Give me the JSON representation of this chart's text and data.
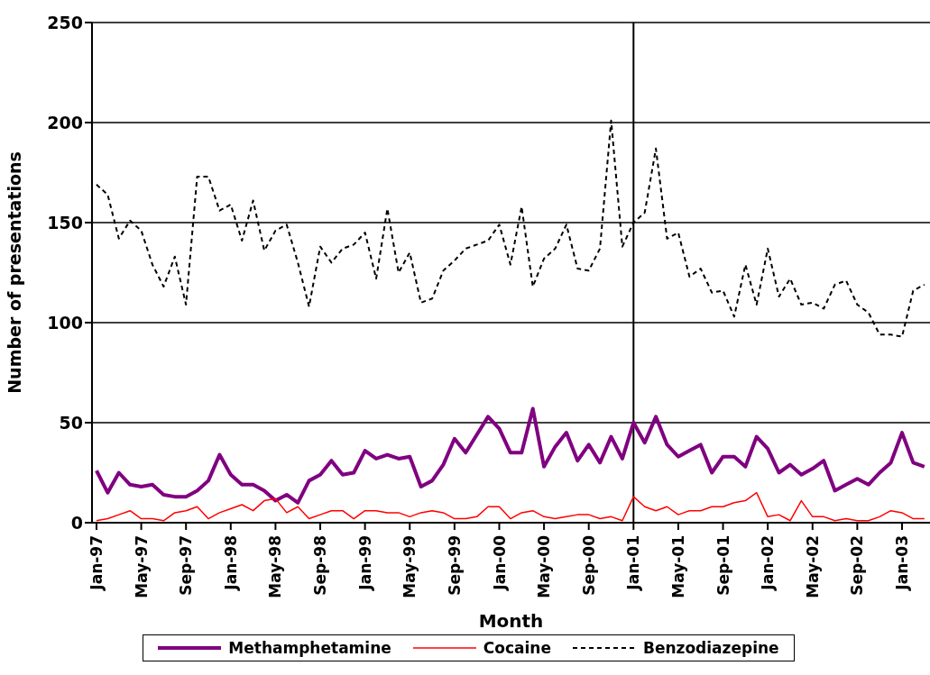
{
  "chart_data": {
    "type": "line",
    "xlabel": "Month",
    "ylabel": "Number of presentations",
    "categories": [
      "Jan-97",
      null,
      null,
      null,
      "May-97",
      null,
      null,
      null,
      "Sep-97",
      null,
      null,
      null,
      "Jan-98",
      null,
      null,
      null,
      "May-98",
      null,
      null,
      null,
      "Sep-98",
      null,
      null,
      null,
      "Jan-99",
      null,
      null,
      null,
      "May-99",
      null,
      null,
      null,
      "Sep-99",
      null,
      null,
      null,
      "Jan-00",
      null,
      null,
      null,
      "May-00",
      null,
      null,
      null,
      "Sep-00",
      null,
      null,
      null,
      "Jan-01",
      null,
      null,
      null,
      "May-01",
      null,
      null,
      null,
      "Sep-01",
      null,
      null,
      null,
      "Jan-02",
      null,
      null,
      null,
      "May-02",
      null,
      null,
      null,
      "Sep-02",
      null,
      null,
      null,
      "Jan-03",
      null,
      null
    ],
    "series": [
      {
        "name": "Methamphetamine",
        "color": "#800080",
        "values": [
          26,
          15,
          25,
          19,
          18,
          19,
          14,
          13,
          13,
          16,
          21,
          34,
          24,
          19,
          19,
          16,
          11,
          14,
          10,
          21,
          24,
          31,
          24,
          25,
          36,
          32,
          34,
          32,
          33,
          18,
          21,
          29,
          42,
          35,
          44,
          53,
          47,
          35,
          35,
          57,
          28,
          38,
          45,
          31,
          39,
          30,
          43,
          32,
          50,
          40,
          53,
          39,
          33,
          36,
          39,
          25,
          33,
          33,
          28,
          43,
          37,
          25,
          29,
          24,
          27,
          31,
          16,
          19,
          22,
          19,
          25,
          30,
          45,
          30,
          28
        ]
      },
      {
        "name": "Cocaine",
        "color": "#ff0000",
        "values": [
          1,
          2,
          4,
          6,
          2,
          2,
          1,
          5,
          6,
          8,
          2,
          5,
          7,
          9,
          6,
          11,
          12,
          5,
          8,
          2,
          4,
          6,
          6,
          2,
          6,
          6,
          5,
          5,
          3,
          5,
          6,
          5,
          2,
          2,
          3,
          8,
          8,
          2,
          5,
          6,
          3,
          2,
          3,
          4,
          4,
          2,
          3,
          1,
          13,
          8,
          6,
          8,
          4,
          6,
          6,
          8,
          8,
          10,
          11,
          15,
          3,
          4,
          1,
          11,
          3,
          3,
          1,
          2,
          1,
          1,
          3,
          6,
          5,
          2,
          2
        ]
      },
      {
        "name": "Benzodiazepine",
        "color": "#000000",
        "line_style": "dashed",
        "values": [
          169,
          164,
          142,
          151,
          146,
          129,
          118,
          133,
          109,
          173,
          173,
          156,
          159,
          141,
          161,
          136,
          146,
          149,
          130,
          108,
          138,
          130,
          137,
          139,
          145,
          122,
          157,
          125,
          135,
          110,
          112,
          126,
          131,
          137,
          139,
          141,
          149,
          129,
          158,
          118,
          132,
          137,
          149,
          127,
          126,
          137,
          201,
          138,
          150,
          155,
          187,
          142,
          145,
          123,
          127,
          115,
          116,
          103,
          129,
          109,
          137,
          113,
          122,
          109,
          110,
          107,
          119,
          121,
          109,
          105,
          94,
          94,
          93,
          116,
          119
        ]
      }
    ],
    "ylim": [
      0,
      250
    ],
    "yticks": [
      0,
      50,
      100,
      150,
      200,
      250
    ],
    "grid": "y",
    "legend": "bottom",
    "marker": "none",
    "ref_lines": [
      {
        "axis": "x",
        "value": "Jan-01",
        "color": "#000000"
      }
    ]
  }
}
